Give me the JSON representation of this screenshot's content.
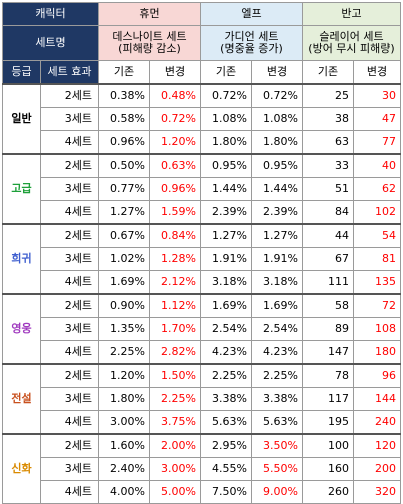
{
  "header": {
    "character_label": "캐릭터",
    "set_name_label": "세트명",
    "grade_label": "등급",
    "set_effect_label": "세트 효과",
    "characters": [
      {
        "name": "휴먼",
        "set_line1": "데스나이트 세트",
        "set_line2": "(피해량 감소)",
        "base": "기존",
        "changed": "변경"
      },
      {
        "name": "엘프",
        "set_line1": "가디언 세트",
        "set_line2": "(명중율 증가)",
        "base": "기존",
        "changed": "변경"
      },
      {
        "name": "반고",
        "set_line1": "슬레이어 세트",
        "set_line2": "(방어 무시 피해량)",
        "base": "기존",
        "changed": "변경"
      }
    ]
  },
  "grades": [
    {
      "name": "일반",
      "color": "#000000",
      "rows": [
        {
          "set": "2세트",
          "v": [
            "0.38%",
            "0.48%",
            "0.72%",
            "0.72%",
            "25",
            "30"
          ]
        },
        {
          "set": "3세트",
          "v": [
            "0.58%",
            "0.72%",
            "1.08%",
            "1.08%",
            "38",
            "47"
          ]
        },
        {
          "set": "4세트",
          "v": [
            "0.96%",
            "1.20%",
            "1.80%",
            "1.80%",
            "63",
            "77"
          ]
        }
      ]
    },
    {
      "name": "고급",
      "color": "#1ea03a",
      "rows": [
        {
          "set": "2세트",
          "v": [
            "0.50%",
            "0.63%",
            "0.95%",
            "0.95%",
            "33",
            "40"
          ]
        },
        {
          "set": "3세트",
          "v": [
            "0.77%",
            "0.96%",
            "1.44%",
            "1.44%",
            "51",
            "62"
          ]
        },
        {
          "set": "4세트",
          "v": [
            "1.27%",
            "1.59%",
            "2.39%",
            "2.39%",
            "84",
            "102"
          ]
        }
      ]
    },
    {
      "name": "희귀",
      "color": "#3f5fcf",
      "rows": [
        {
          "set": "2세트",
          "v": [
            "0.67%",
            "0.84%",
            "1.27%",
            "1.27%",
            "44",
            "54"
          ]
        },
        {
          "set": "3세트",
          "v": [
            "1.02%",
            "1.28%",
            "1.91%",
            "1.91%",
            "67",
            "81"
          ]
        },
        {
          "set": "4세트",
          "v": [
            "1.69%",
            "2.12%",
            "3.18%",
            "3.18%",
            "111",
            "135"
          ]
        }
      ]
    },
    {
      "name": "영웅",
      "color": "#a03abf",
      "rows": [
        {
          "set": "2세트",
          "v": [
            "0.90%",
            "1.12%",
            "1.69%",
            "1.69%",
            "58",
            "72"
          ]
        },
        {
          "set": "3세트",
          "v": [
            "1.35%",
            "1.70%",
            "2.54%",
            "2.54%",
            "89",
            "108"
          ]
        },
        {
          "set": "4세트",
          "v": [
            "2.25%",
            "2.82%",
            "4.23%",
            "4.23%",
            "147",
            "180"
          ]
        }
      ]
    },
    {
      "name": "전설",
      "color": "#c8501e",
      "rows": [
        {
          "set": "2세트",
          "v": [
            "1.20%",
            "1.50%",
            "2.25%",
            "2.25%",
            "78",
            "96"
          ]
        },
        {
          "set": "3세트",
          "v": [
            "1.80%",
            "2.25%",
            "3.38%",
            "3.38%",
            "117",
            "144"
          ]
        },
        {
          "set": "4세트",
          "v": [
            "3.00%",
            "3.75%",
            "5.63%",
            "5.63%",
            "195",
            "240"
          ]
        }
      ]
    },
    {
      "name": "신화",
      "color": "#d98a00",
      "rows": [
        {
          "set": "2세트",
          "v": [
            "1.60%",
            "2.00%",
            "2.95%",
            "3.50%",
            "100",
            "120"
          ]
        },
        {
          "set": "3세트",
          "v": [
            "2.40%",
            "3.00%",
            "4.55%",
            "5.50%",
            "160",
            "200"
          ]
        },
        {
          "set": "4세트",
          "v": [
            "4.00%",
            "5.00%",
            "7.50%",
            "9.00%",
            "260",
            "320"
          ]
        }
      ]
    }
  ],
  "colors": {
    "header_navy": "#1f3864",
    "human_bg": "#f8d7d5",
    "elf_bg": "#dcebf6",
    "bango_bg": "#e5efda",
    "changed_highlight": "#ff0000"
  }
}
